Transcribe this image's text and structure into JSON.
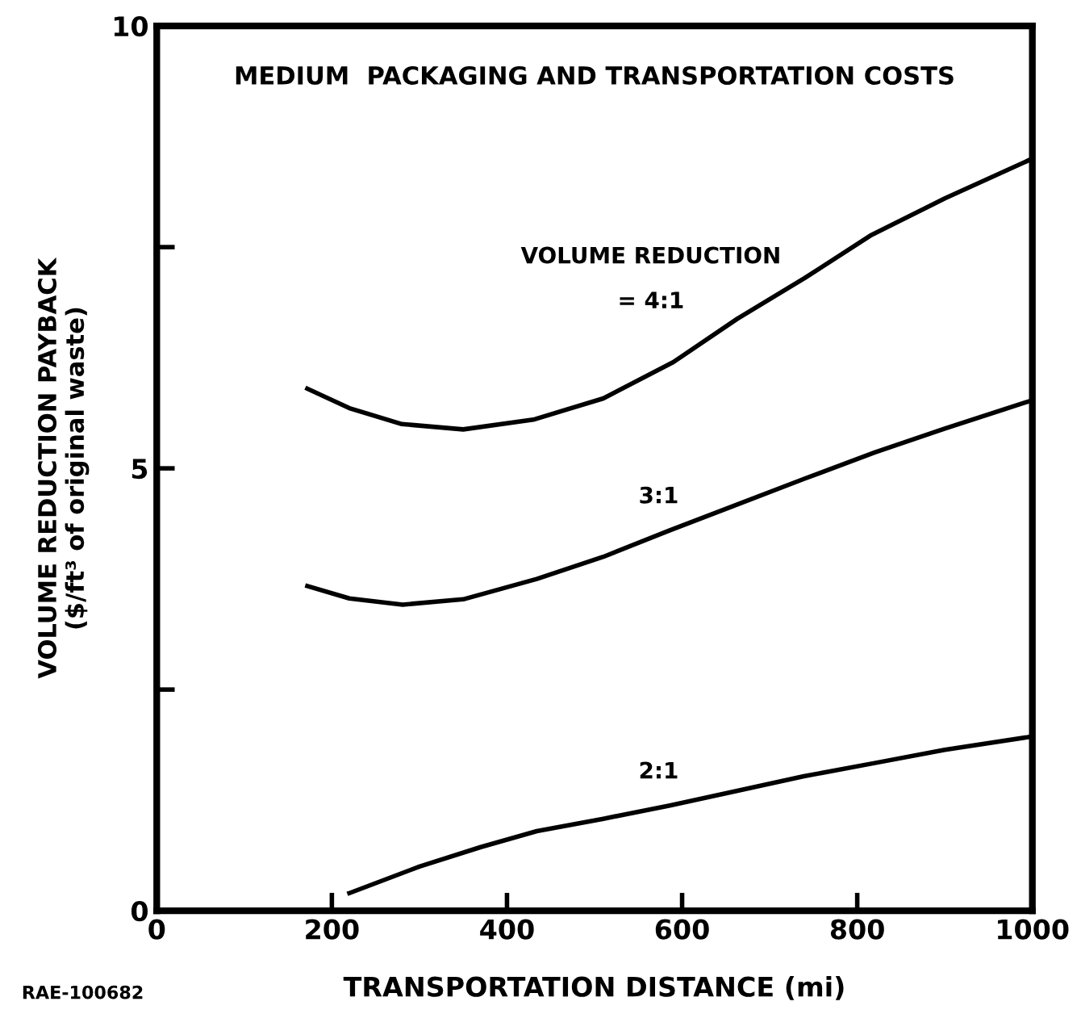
{
  "chart_data": {
    "type": "line",
    "title": "MEDIUM  PACKAGING AND TRANSPORTATION COSTS",
    "xlabel": "TRANSPORTATION DISTANCE (mi)",
    "ylabel": "VOLUME REDUCTION PAYBACK\n($/ft³ of original waste)",
    "legend_title": "VOLUME REDUCTION",
    "annotations": [
      "RAE-100682"
    ],
    "xlim": [
      0,
      1000
    ],
    "xticks": [
      0,
      200,
      400,
      600,
      800,
      1000
    ],
    "ylim": [
      0,
      10
    ],
    "yticks": [
      0,
      {
        "value": 2.5,
        "label": null
      },
      5,
      {
        "value": 7.5,
        "label": null
      },
      10
    ],
    "legend": false,
    "grid": false,
    "marker": "none",
    "line_style": "solid",
    "series": [
      {
        "name": "= 4:1",
        "color": "#000000",
        "x": [
          172,
          220,
          280,
          350,
          430,
          510,
          590,
          663,
          740,
          815,
          900,
          1000
        ],
        "values": [
          5.9,
          5.68,
          5.5,
          5.44,
          5.55,
          5.79,
          6.2,
          6.69,
          7.15,
          7.63,
          8.05,
          8.5
        ]
      },
      {
        "name": "3:1",
        "color": "#000000",
        "x": [
          172,
          220,
          281,
          350,
          434,
          510,
          586,
          660,
          739,
          820,
          900,
          1000
        ],
        "values": [
          3.67,
          3.53,
          3.46,
          3.52,
          3.75,
          4.0,
          4.3,
          4.58,
          4.88,
          5.18,
          5.45,
          5.77
        ]
      },
      {
        "name": "2:1",
        "color": "#000000",
        "x": [
          220,
          300,
          370,
          434,
          510,
          586,
          660,
          739,
          820,
          900,
          1000
        ],
        "values": [
          0.2,
          0.5,
          0.72,
          0.9,
          1.04,
          1.19,
          1.35,
          1.52,
          1.67,
          1.82,
          1.97
        ]
      }
    ]
  }
}
